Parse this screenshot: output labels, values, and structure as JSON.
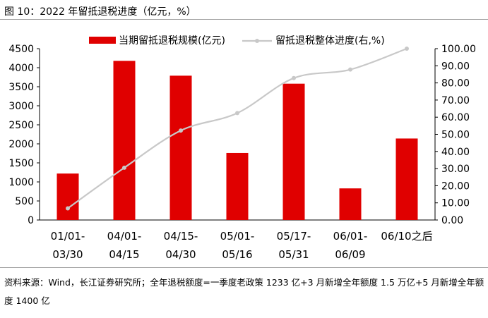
{
  "figure": {
    "title": "图 10：2022 年留抵退税进度（亿元，%）",
    "footnote": "资料来源：Wind，长江证券研究所；全年退税额度=一季度老政策 1233 亿+3 月新增全年额度 1.5 万亿+5 月新增全年额度 1400 亿"
  },
  "chart_data": {
    "type": "bar",
    "categories": [
      [
        "01/01-",
        "03/30"
      ],
      [
        "04/01-",
        "04/15"
      ],
      [
        "04/15-",
        "04/30"
      ],
      [
        "05/01-",
        "05/16"
      ],
      [
        "05/17-",
        "05/31"
      ],
      [
        "06/01-",
        "06/09"
      ],
      [
        "06/10之后"
      ]
    ],
    "series": [
      {
        "name": "当期留抵退税规模(亿元)",
        "type": "bar",
        "axis": "left",
        "color": "#e00000",
        "values": [
          1220,
          4180,
          3790,
          1760,
          3580,
          830,
          2140
        ]
      },
      {
        "name": "留抵退税整体进度(右,%)",
        "type": "line",
        "axis": "right",
        "color": "#c8c8c8",
        "values": [
          6.8,
          30.5,
          52.2,
          62.4,
          82.8,
          87.8,
          100.0
        ]
      }
    ],
    "y_left": {
      "min": 0,
      "max": 4500,
      "ticks": [
        "0",
        "500",
        "1000",
        "1500",
        "2000",
        "2500",
        "3000",
        "3500",
        "4000",
        "4500"
      ]
    },
    "y_right": {
      "min": 0,
      "max": 100,
      "ticks": [
        "0.00",
        "10.00",
        "20.00",
        "30.00",
        "40.00",
        "50.00",
        "60.00",
        "70.00",
        "80.00",
        "90.00",
        "100.00"
      ]
    },
    "legend_position": "top",
    "grid": false
  }
}
